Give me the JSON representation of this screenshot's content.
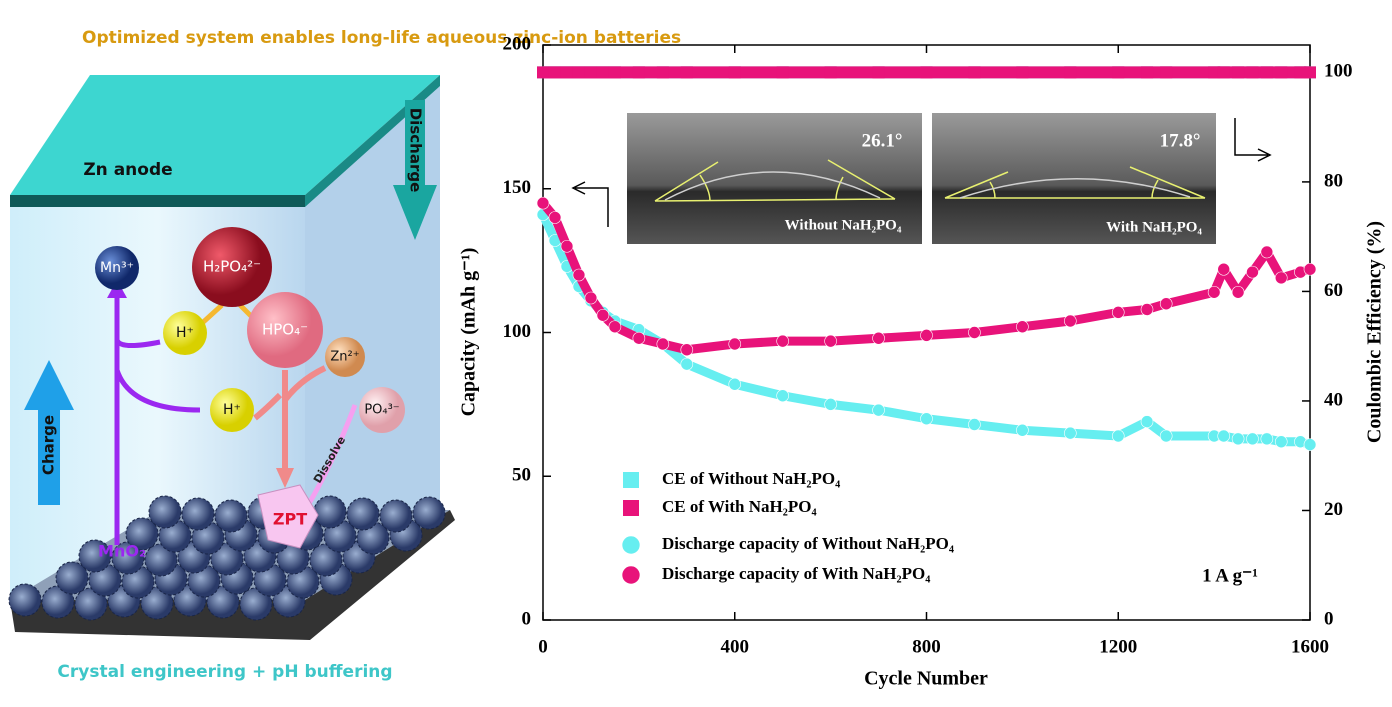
{
  "diagram": {
    "title": "Optimized system enables long-life aqueous zinc-ion batteries",
    "anode": "Zn anode",
    "discharge": "Discharge",
    "charge": "Charge",
    "species": [
      "Mn³⁺",
      "H₂PO₄²⁻",
      "H⁺",
      "HPO₄⁻",
      "Zn²⁺",
      "H⁺",
      "PO₄³⁻"
    ],
    "dissolve": "Dissolve",
    "zpt": "ZPT",
    "cathode": "MnO₂",
    "footer": "Crystal engineering  +  pH buffering"
  },
  "chart_data": {
    "type": "line",
    "xlabel": "Cycle Number",
    "ylabel": "Capacity (mAh g⁻¹)",
    "y2label": "Coulombic Efficiency (%)",
    "annotation": "1 A g⁻¹",
    "insets": [
      {
        "angle": "26.1°",
        "label": "Without NaH₂PO₄"
      },
      {
        "angle": "17.8°",
        "label": "With NaH₂PO₄"
      }
    ],
    "xlim": [
      0,
      1600
    ],
    "xticks": [
      0,
      400,
      800,
      1200,
      1600
    ],
    "ylim": [
      0,
      200
    ],
    "yticks": [
      0,
      50,
      100,
      150,
      200
    ],
    "y2lim": [
      0,
      105
    ],
    "y2ticks": [
      0,
      20,
      40,
      60,
      80,
      100
    ],
    "x": [
      0,
      25,
      50,
      75,
      100,
      125,
      150,
      200,
      250,
      300,
      400,
      500,
      600,
      700,
      800,
      900,
      1000,
      1100,
      1200,
      1260,
      1300,
      1400,
      1420,
      1450,
      1480,
      1510,
      1540,
      1580,
      1600
    ],
    "series": [
      {
        "name": "CE of Without NaH₂PO₄",
        "color": "#66eef0",
        "marker": "square",
        "axis": "y2",
        "values": [
          100,
          100,
          100,
          100,
          100,
          100,
          100,
          100,
          100,
          100,
          100,
          100,
          100,
          100,
          100,
          100,
          100,
          100,
          100,
          100,
          100,
          100,
          100,
          100,
          100,
          100,
          100,
          100,
          100
        ]
      },
      {
        "name": "CE of With NaH₂PO₄",
        "color": "#e8137a",
        "marker": "square",
        "axis": "y2",
        "values": [
          100,
          100,
          100,
          100,
          100,
          100,
          100,
          100,
          100,
          100,
          100,
          100,
          100,
          100,
          100,
          100,
          100,
          100,
          100,
          100,
          100,
          100,
          100,
          100,
          100,
          100,
          100,
          100,
          100
        ]
      },
      {
        "name": "Discharge capacity of Without NaH₂PO₄",
        "color": "#66eef0",
        "marker": "circle",
        "values": [
          141,
          132,
          123,
          116,
          111,
          107,
          104,
          101,
          96,
          89,
          82,
          78,
          75,
          73,
          70,
          68,
          66,
          65,
          64,
          69,
          64,
          64,
          64,
          63,
          63,
          63,
          62,
          62,
          61
        ]
      },
      {
        "name": "Discharge capacity of With NaH₂PO₄",
        "color": "#e8137a",
        "marker": "circle",
        "values": [
          145,
          140,
          130,
          120,
          112,
          106,
          102,
          98,
          96,
          94,
          96,
          97,
          97,
          98,
          99,
          100,
          102,
          104,
          107,
          108,
          110,
          114,
          122,
          114,
          121,
          128,
          119,
          121,
          122
        ]
      }
    ]
  }
}
